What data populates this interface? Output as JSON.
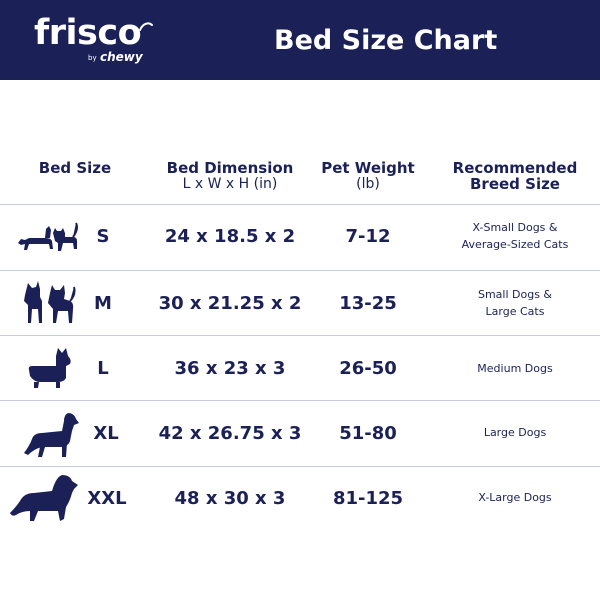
{
  "header": {
    "brand": "frisco",
    "byline": "by",
    "sub_brand": "chewy",
    "title": "Bed Size Chart"
  },
  "columns": {
    "bed_size": "Bed Size",
    "bed_dimension": "Bed Dimension",
    "bed_dimension_unit": "L x W x H (in)",
    "pet_weight": "Pet Weight",
    "pet_weight_unit": "(lb)",
    "breed_line1": "Recommended",
    "breed_line2": "Breed Size"
  },
  "rows": [
    {
      "size": "S",
      "dimension": "24 x 18.5 x 2",
      "weight": "7-12",
      "breed_line1": "X-Small Dogs &",
      "breed_line2": "Average-Sized Cats",
      "icon": "dachshund-and-cat-icon"
    },
    {
      "size": "M",
      "dimension": "30 x 21.25 x 2",
      "weight": "13-25",
      "breed_line1": "Small Dogs &",
      "breed_line2": "Large Cats",
      "icon": "small-dog-and-cat-icon"
    },
    {
      "size": "L",
      "dimension": "36 x 23 x 3",
      "weight": "26-50",
      "breed_line1": "Medium Dogs",
      "breed_line2": "",
      "icon": "corgi-icon"
    },
    {
      "size": "XL",
      "dimension": "42 x 26.75 x 3",
      "weight": "51-80",
      "breed_line1": "Large Dogs",
      "breed_line2": "",
      "icon": "retriever-icon"
    },
    {
      "size": "XXL",
      "dimension": "48 x 30 x 3",
      "weight": "81-125",
      "breed_line1": "X-Large Dogs",
      "breed_line2": "",
      "icon": "large-fluffy-dog-icon"
    }
  ],
  "colors": {
    "navy": "#1b2157",
    "divider": "#c9cce0",
    "background": "#ffffff"
  }
}
